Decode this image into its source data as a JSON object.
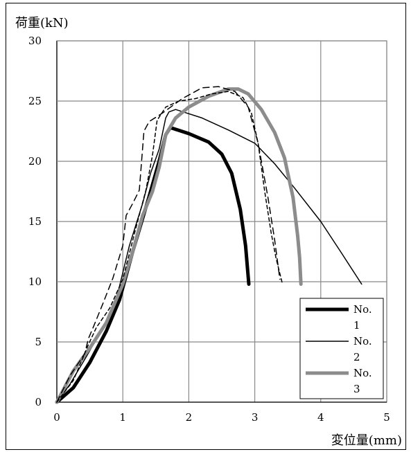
{
  "chart_data": {
    "type": "line",
    "title": "",
    "ylabel": "荷重(kN)",
    "xlabel": "変位量(mm)",
    "xlim": [
      0,
      5
    ],
    "ylim": [
      0,
      30
    ],
    "xticks": [
      0,
      1,
      2,
      3,
      4,
      5
    ],
    "yticks": [
      0,
      5,
      10,
      15,
      20,
      25,
      30
    ],
    "grid": true,
    "legend_position": "bottom-right",
    "legend": [
      {
        "label": "No.1",
        "color": "#000000",
        "width": 5,
        "dash": ""
      },
      {
        "label": "No.2",
        "color": "#000000",
        "width": 1.5,
        "dash": ""
      },
      {
        "label": "No.3",
        "color": "#8c8c8c",
        "width": 5,
        "dash": ""
      }
    ],
    "series": [
      {
        "color": "#000000",
        "width": 5,
        "dash": "",
        "points": [
          [
            0,
            0
          ],
          [
            0.25,
            1.2
          ],
          [
            0.5,
            3.3
          ],
          [
            0.75,
            5.9
          ],
          [
            0.95,
            8.5
          ],
          [
            1.15,
            12.5
          ],
          [
            1.4,
            17.1
          ],
          [
            1.55,
            20.0
          ],
          [
            1.65,
            22.2
          ],
          [
            1.72,
            22.8
          ],
          [
            2.0,
            22.3
          ],
          [
            2.3,
            21.6
          ],
          [
            2.5,
            20.6
          ],
          [
            2.65,
            19.0
          ],
          [
            2.78,
            16.0
          ],
          [
            2.86,
            13.0
          ],
          [
            2.91,
            9.8
          ]
        ]
      },
      {
        "color": "#000000",
        "width": 1.5,
        "dash": "",
        "points": [
          [
            0,
            0
          ],
          [
            0.2,
            1.5
          ],
          [
            0.45,
            3.8
          ],
          [
            0.7,
            6.2
          ],
          [
            0.9,
            8.5
          ],
          [
            1.1,
            13.0
          ],
          [
            1.3,
            16.5
          ],
          [
            1.42,
            19.0
          ],
          [
            1.55,
            21.0
          ],
          [
            1.65,
            23.6
          ],
          [
            1.7,
            24.1
          ],
          [
            1.8,
            24.3
          ],
          [
            2.2,
            23.6
          ],
          [
            2.6,
            22.6
          ],
          [
            3.0,
            21.5
          ],
          [
            3.3,
            19.8
          ],
          [
            3.6,
            17.8
          ],
          [
            4.0,
            15.0
          ],
          [
            4.3,
            12.5
          ],
          [
            4.62,
            9.8
          ]
        ]
      },
      {
        "color": "#8c8c8c",
        "width": 5,
        "dash": "",
        "points": [
          [
            0,
            0
          ],
          [
            0.25,
            2.6
          ],
          [
            0.5,
            4.5
          ],
          [
            0.75,
            6.6
          ],
          [
            1.0,
            9.8
          ],
          [
            1.15,
            12.5
          ],
          [
            1.3,
            15.5
          ],
          [
            1.45,
            17.5
          ],
          [
            1.55,
            19.5
          ],
          [
            1.65,
            22.2
          ],
          [
            1.8,
            23.6
          ],
          [
            2.0,
            24.5
          ],
          [
            2.3,
            25.4
          ],
          [
            2.6,
            26.0
          ],
          [
            2.75,
            26.0
          ],
          [
            2.9,
            25.6
          ],
          [
            3.1,
            24.3
          ],
          [
            3.3,
            22.4
          ],
          [
            3.45,
            20.3
          ],
          [
            3.58,
            17.0
          ],
          [
            3.65,
            13.8
          ],
          [
            3.68,
            12.0
          ],
          [
            3.7,
            9.8
          ]
        ]
      },
      {
        "color": "#000000",
        "width": 1.5,
        "dash": "9,6",
        "points": [
          [
            0,
            0
          ],
          [
            0.2,
            2.2
          ],
          [
            0.42,
            4.0
          ],
          [
            0.48,
            5.3
          ],
          [
            0.55,
            6.2
          ],
          [
            0.7,
            8.2
          ],
          [
            0.85,
            10.3
          ],
          [
            1.0,
            13.0
          ],
          [
            1.05,
            15.5
          ],
          [
            1.15,
            16.5
          ],
          [
            1.25,
            17.6
          ],
          [
            1.32,
            22.5
          ],
          [
            1.4,
            23.3
          ],
          [
            1.6,
            24.0
          ],
          [
            1.9,
            25.2
          ],
          [
            2.2,
            26.1
          ],
          [
            2.45,
            26.2
          ],
          [
            2.7,
            25.8
          ],
          [
            2.9,
            24.5
          ],
          [
            3.05,
            21.5
          ],
          [
            3.2,
            17.0
          ],
          [
            3.3,
            13.5
          ],
          [
            3.38,
            10.2
          ]
        ]
      },
      {
        "color": "#000000",
        "width": 1.5,
        "dash": "5,4",
        "points": [
          [
            0,
            0
          ],
          [
            0.25,
            1.8
          ],
          [
            0.48,
            4.8
          ],
          [
            0.6,
            6.2
          ],
          [
            0.8,
            7.8
          ],
          [
            1.0,
            10.2
          ],
          [
            1.2,
            14.5
          ],
          [
            1.35,
            17.6
          ],
          [
            1.45,
            20.5
          ],
          [
            1.52,
            23.4
          ],
          [
            1.65,
            24.5
          ],
          [
            1.85,
            25.0
          ],
          [
            2.1,
            25.2
          ],
          [
            2.35,
            25.6
          ],
          [
            2.6,
            25.8
          ],
          [
            2.82,
            25.3
          ],
          [
            2.95,
            24.0
          ],
          [
            3.05,
            21.5
          ],
          [
            3.15,
            17.5
          ],
          [
            3.25,
            14.0
          ],
          [
            3.32,
            12.0
          ],
          [
            3.42,
            9.8
          ]
        ]
      }
    ]
  }
}
